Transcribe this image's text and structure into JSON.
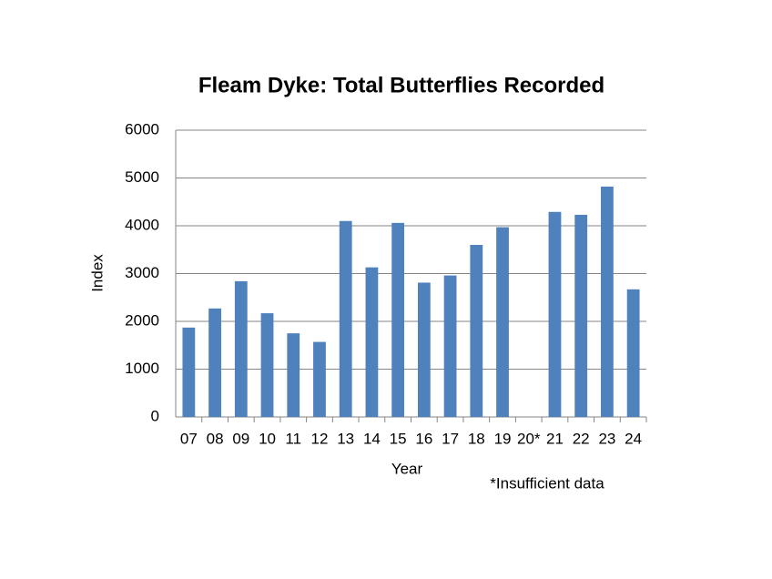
{
  "chart_data": {
    "type": "bar",
    "title": "Fleam Dyke:  Total Butterflies Recorded",
    "x_label": "Year",
    "y_label": "Index",
    "note": "*Insufficient data",
    "categories": [
      "07",
      "08",
      "09",
      "10",
      "11",
      "12",
      "13",
      "14",
      "15",
      "16",
      "17",
      "18",
      "19",
      "20*",
      "21",
      "22",
      "23",
      "24"
    ],
    "values": [
      1870,
      2270,
      2840,
      2170,
      1750,
      1570,
      4100,
      3130,
      4060,
      2810,
      2960,
      3600,
      3970,
      null,
      4290,
      4230,
      4820,
      2670
    ],
    "color": "#4f81bd",
    "ylim": [
      0,
      6000
    ],
    "yticks": [
      0,
      1000,
      2000,
      3000,
      4000,
      5000,
      6000
    ],
    "grid": true
  }
}
